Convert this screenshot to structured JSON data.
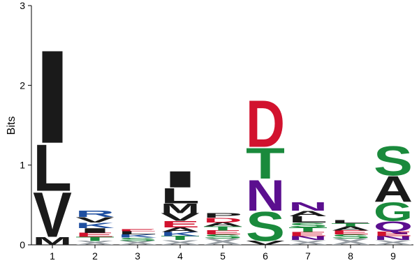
{
  "chart_data": {
    "type": "sequence-logo",
    "ylabel": "Bits",
    "ylim": [
      0,
      3
    ],
    "yticks": [
      "0",
      "1",
      "2",
      "3"
    ],
    "colors": {
      "hydrophobic": "#1a1a1a",
      "acidic": "#d2122e",
      "polar": "#1a8a3c",
      "amide": "#5b0f8f",
      "basic": "#1f4fa0",
      "minor": "#9aa0a6"
    },
    "positions": [
      {
        "label": "1",
        "letters": [
          {
            "aa": "M",
            "bits": 0.1,
            "color": "hydrophobic"
          },
          {
            "aa": "V",
            "bits": 0.58,
            "color": "hydrophobic"
          },
          {
            "aa": "L",
            "bits": 0.6,
            "color": "hydrophobic"
          },
          {
            "aa": "I",
            "bits": 1.2,
            "color": "hydrophobic"
          }
        ]
      },
      {
        "label": "2",
        "letters": [
          {
            "aa": "X",
            "bits": 0.05,
            "color": "minor"
          },
          {
            "aa": "T",
            "bits": 0.05,
            "color": "polar"
          },
          {
            "aa": "E",
            "bits": 0.05,
            "color": "acidic"
          },
          {
            "aa": "I",
            "bits": 0.06,
            "color": "hydrophobic"
          },
          {
            "aa": "K",
            "bits": 0.07,
            "color": "basic"
          },
          {
            "aa": "V",
            "bits": 0.07,
            "color": "hydrophobic"
          },
          {
            "aa": "R",
            "bits": 0.08,
            "color": "basic"
          }
        ]
      },
      {
        "label": "3",
        "letters": [
          {
            "aa": "X",
            "bits": 0.05,
            "color": "minor"
          },
          {
            "aa": "S",
            "bits": 0.04,
            "color": "polar"
          },
          {
            "aa": "K",
            "bits": 0.04,
            "color": "basic"
          },
          {
            "aa": "L",
            "bits": 0.04,
            "color": "hydrophobic"
          },
          {
            "aa": "E",
            "bits": 0.03,
            "color": "acidic"
          }
        ]
      },
      {
        "label": "4",
        "letters": [
          {
            "aa": "X",
            "bits": 0.06,
            "color": "minor"
          },
          {
            "aa": "T",
            "bits": 0.05,
            "color": "polar"
          },
          {
            "aa": "K",
            "bits": 0.05,
            "color": "basic"
          },
          {
            "aa": "A",
            "bits": 0.06,
            "color": "hydrophobic"
          },
          {
            "aa": "E",
            "bits": 0.08,
            "color": "acidic"
          },
          {
            "aa": "V",
            "bits": 0.1,
            "color": "hydrophobic"
          },
          {
            "aa": "M",
            "bits": 0.12,
            "color": "hydrophobic"
          },
          {
            "aa": "L",
            "bits": 0.2,
            "color": "hydrophobic"
          },
          {
            "aa": "I",
            "bits": 0.21,
            "color": "hydrophobic"
          }
        ]
      },
      {
        "label": "5",
        "letters": [
          {
            "aa": "X",
            "bits": 0.08,
            "color": "minor"
          },
          {
            "aa": "S",
            "bits": 0.05,
            "color": "polar"
          },
          {
            "aa": "E",
            "bits": 0.05,
            "color": "acidic"
          },
          {
            "aa": "T",
            "bits": 0.05,
            "color": "polar"
          },
          {
            "aa": "A",
            "bits": 0.05,
            "color": "hydrophobic"
          },
          {
            "aa": "D",
            "bits": 0.06,
            "color": "acidic"
          },
          {
            "aa": "P",
            "bits": 0.06,
            "color": "hydrophobic"
          }
        ]
      },
      {
        "label": "6",
        "letters": [
          {
            "aa": "V",
            "bits": 0.05,
            "color": "hydrophobic"
          },
          {
            "aa": "S",
            "bits": 0.38,
            "color": "polar"
          },
          {
            "aa": "N",
            "bits": 0.4,
            "color": "amide"
          },
          {
            "aa": "T",
            "bits": 0.4,
            "color": "polar"
          },
          {
            "aa": "D",
            "bits": 0.6,
            "color": "acidic"
          }
        ]
      },
      {
        "label": "7",
        "letters": [
          {
            "aa": "X",
            "bits": 0.06,
            "color": "minor"
          },
          {
            "aa": "N",
            "bits": 0.05,
            "color": "amide"
          },
          {
            "aa": "E",
            "bits": 0.05,
            "color": "acidic"
          },
          {
            "aa": "T",
            "bits": 0.06,
            "color": "polar"
          },
          {
            "aa": "S",
            "bits": 0.06,
            "color": "polar"
          },
          {
            "aa": "L",
            "bits": 0.08,
            "color": "hydrophobic"
          },
          {
            "aa": "A",
            "bits": 0.07,
            "color": "hydrophobic"
          },
          {
            "aa": "N",
            "bits": 0.11,
            "color": "amide"
          }
        ]
      },
      {
        "label": "8",
        "letters": [
          {
            "aa": "X",
            "bits": 0.08,
            "color": "minor"
          },
          {
            "aa": "S",
            "bits": 0.05,
            "color": "polar"
          },
          {
            "aa": "E",
            "bits": 0.05,
            "color": "acidic"
          },
          {
            "aa": "A",
            "bits": 0.05,
            "color": "hydrophobic"
          },
          {
            "aa": "T",
            "bits": 0.04,
            "color": "polar"
          },
          {
            "aa": "L",
            "bits": 0.04,
            "color": "hydrophobic"
          }
        ]
      },
      {
        "label": "9",
        "letters": [
          {
            "aa": "X",
            "bits": 0.06,
            "color": "minor"
          },
          {
            "aa": "N",
            "bits": 0.05,
            "color": "amide"
          },
          {
            "aa": "E",
            "bits": 0.06,
            "color": "acidic"
          },
          {
            "aa": "Q",
            "bits": 0.13,
            "color": "amide"
          },
          {
            "aa": "G",
            "bits": 0.24,
            "color": "polar"
          },
          {
            "aa": "A",
            "bits": 0.33,
            "color": "hydrophobic"
          },
          {
            "aa": "S",
            "bits": 0.38,
            "color": "polar"
          }
        ]
      }
    ]
  }
}
